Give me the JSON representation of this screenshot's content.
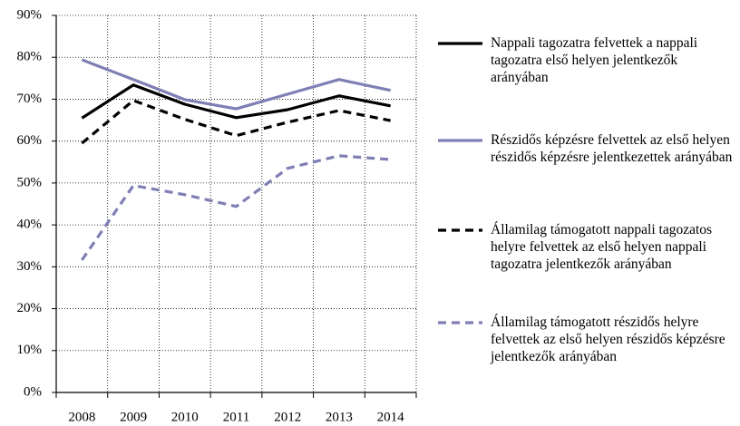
{
  "chart_data": {
    "type": "line",
    "categories": [
      "2008",
      "2009",
      "2010",
      "2011",
      "2012",
      "2013",
      "2014"
    ],
    "series": [
      {
        "name": "Nappali tagozatra felvettek a nappali tagozatra első helyen jelentkezők arányában",
        "color": "#000000",
        "linestyle": "solid",
        "values": [
          65.5,
          73.4,
          68.8,
          65.6,
          67.5,
          70.8,
          68.4
        ]
      },
      {
        "name": "Részidős képzésre felvettek az első helyen részidős képzésre jelentkezettek arányában",
        "color": "#7f7fb5",
        "linestyle": "solid",
        "values": [
          79.4,
          74.7,
          69.9,
          67.7,
          71.2,
          74.7,
          72.1
        ]
      },
      {
        "name": "Államilag támogatott nappali tagozatos helyre felvettek az első helyen nappali tagozatra jelentkezők arányában",
        "color": "#000000",
        "linestyle": "dashed",
        "values": [
          59.5,
          69.7,
          65.2,
          61.3,
          64.5,
          67.3,
          64.9
        ]
      },
      {
        "name": "Államilag támogatott részidős helyre felvettek az első helyen részidős képzésre jelentkezők arányában",
        "color": "#7f7fb5",
        "linestyle": "dashed",
        "values": [
          31.6,
          49.4,
          47.2,
          44.4,
          53.5,
          56.5,
          55.6
        ]
      }
    ],
    "ylim": [
      0,
      90
    ],
    "yticks": [
      {
        "value": 0,
        "label": "0%"
      },
      {
        "value": 10,
        "label": "10%"
      },
      {
        "value": 20,
        "label": "20%"
      },
      {
        "value": 30,
        "label": "30%"
      },
      {
        "value": 40,
        "label": "40%"
      },
      {
        "value": 50,
        "label": "50%"
      },
      {
        "value": 60,
        "label": "60%"
      },
      {
        "value": 70,
        "label": "70%"
      },
      {
        "value": 80,
        "label": "80%"
      },
      {
        "value": 90,
        "label": "90%"
      }
    ],
    "grid": true,
    "legend": "right"
  }
}
